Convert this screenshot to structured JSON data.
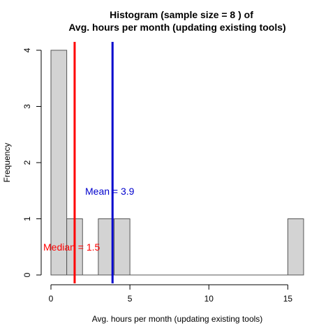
{
  "chart_data": {
    "type": "bar",
    "title_line1": "Histogram (sample size =  8 ) of",
    "title_line2": "Avg. hours per month (updating existing tools)",
    "xlabel": "Avg. hours per month (updating existing tools)",
    "ylabel": "Frequency",
    "xlim": [
      0,
      16
    ],
    "ylim": [
      0,
      4
    ],
    "x_ticks": [
      0,
      5,
      10,
      15
    ],
    "y_ticks": [
      0,
      1,
      2,
      3,
      4
    ],
    "bins": [
      {
        "start": 0,
        "end": 1,
        "count": 4
      },
      {
        "start": 1,
        "end": 2,
        "count": 1
      },
      {
        "start": 2,
        "end": 3,
        "count": 0
      },
      {
        "start": 3,
        "end": 4,
        "count": 1
      },
      {
        "start": 4,
        "end": 5,
        "count": 1
      },
      {
        "start": 5,
        "end": 6,
        "count": 0
      },
      {
        "start": 6,
        "end": 7,
        "count": 0
      },
      {
        "start": 7,
        "end": 8,
        "count": 0
      },
      {
        "start": 8,
        "end": 9,
        "count": 0
      },
      {
        "start": 9,
        "end": 10,
        "count": 0
      },
      {
        "start": 10,
        "end": 11,
        "count": 0
      },
      {
        "start": 11,
        "end": 12,
        "count": 0
      },
      {
        "start": 12,
        "end": 13,
        "count": 0
      },
      {
        "start": 13,
        "end": 14,
        "count": 0
      },
      {
        "start": 14,
        "end": 15,
        "count": 0
      },
      {
        "start": 15,
        "end": 16,
        "count": 1
      }
    ],
    "bar_fill": "#d3d3d3",
    "bar_stroke": "#555555",
    "median": {
      "value": 1.5,
      "label": "Median = 1.5",
      "color": "#ff0000"
    },
    "mean": {
      "value": 3.9,
      "label": "Mean = 3.9",
      "color": "#0000cd"
    }
  }
}
